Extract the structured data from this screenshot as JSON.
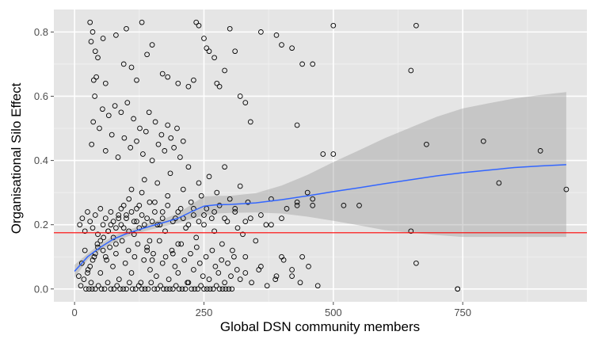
{
  "chart_data": {
    "type": "scatter",
    "xlabel": "Global DSN community members",
    "ylabel": "Organisational Silo Effect",
    "xlim": [
      -40,
      990
    ],
    "ylim": [
      -0.04,
      0.87
    ],
    "x_ticks": [
      0,
      250,
      500,
      750
    ],
    "x_tick_labels": [
      "0",
      "250",
      "500",
      "750"
    ],
    "y_ticks": [
      0.0,
      0.2,
      0.4,
      0.6,
      0.8
    ],
    "y_tick_labels": [
      "0.0",
      "0.2",
      "0.4",
      "0.6",
      "0.8"
    ],
    "grid": true,
    "reference_line": {
      "y": 0.175,
      "color": "#ff0000"
    },
    "smooth": {
      "color": "#3366ff",
      "band_color": "#999999",
      "x": [
        0,
        25,
        50,
        75,
        100,
        125,
        150,
        175,
        200,
        225,
        250,
        275,
        300,
        350,
        400,
        450,
        500,
        550,
        600,
        650,
        700,
        750,
        800,
        850,
        900,
        950
      ],
      "y": [
        0.055,
        0.1,
        0.13,
        0.155,
        0.172,
        0.185,
        0.197,
        0.208,
        0.22,
        0.24,
        0.258,
        0.262,
        0.263,
        0.268,
        0.278,
        0.29,
        0.303,
        0.315,
        0.328,
        0.34,
        0.352,
        0.362,
        0.37,
        0.378,
        0.383,
        0.387
      ],
      "lower": [
        0.035,
        0.09,
        0.12,
        0.145,
        0.162,
        0.175,
        0.186,
        0.196,
        0.205,
        0.218,
        0.228,
        0.235,
        0.237,
        0.238,
        0.235,
        0.225,
        0.212,
        0.198,
        0.183,
        0.175,
        0.168,
        0.162,
        0.162,
        0.162,
        0.162,
        0.162
      ],
      "upper": [
        0.075,
        0.11,
        0.14,
        0.165,
        0.182,
        0.195,
        0.208,
        0.22,
        0.235,
        0.262,
        0.288,
        0.29,
        0.29,
        0.298,
        0.322,
        0.355,
        0.395,
        0.432,
        0.47,
        0.503,
        0.536,
        0.562,
        0.578,
        0.593,
        0.604,
        0.613
      ]
    },
    "points": {
      "x": [
        12,
        18,
        25,
        30,
        35,
        40,
        45,
        50,
        55,
        60,
        65,
        70,
        75,
        80,
        85,
        90,
        95,
        100,
        105,
        110,
        115,
        120,
        125,
        130,
        135,
        140,
        145,
        150,
        155,
        160,
        165,
        170,
        175,
        180,
        185,
        190,
        195,
        200,
        205,
        210,
        215,
        220,
        225,
        230,
        235,
        240,
        245,
        250,
        255,
        260,
        265,
        270,
        275,
        280,
        285,
        290,
        295,
        300,
        305,
        310,
        315,
        320,
        325,
        330,
        335,
        340,
        350,
        360,
        370,
        380,
        390,
        400,
        410,
        420,
        430,
        440,
        450,
        460,
        480,
        500,
        520,
        550,
        650,
        660,
        680,
        740,
        790,
        820,
        900,
        950,
        8,
        14,
        20,
        26,
        32,
        38,
        44,
        50,
        56,
        62,
        68,
        74,
        80,
        86,
        92,
        98,
        104,
        110,
        116,
        122,
        128,
        134,
        140,
        146,
        152,
        158,
        164,
        170,
        176,
        182,
        188,
        194,
        200,
        206,
        212,
        218,
        224,
        230,
        236,
        242,
        248,
        254,
        260,
        266,
        272,
        278,
        284,
        290,
        296,
        302,
        308,
        314,
        320,
        330,
        342,
        356,
        372,
        388,
        404,
        420,
        436,
        452,
        470,
        22,
        28,
        34,
        40,
        46,
        52,
        58,
        64,
        70,
        76,
        82,
        88,
        94,
        100,
        106,
        112,
        118,
        124,
        130,
        136,
        142,
        148,
        154,
        160,
        166,
        172,
        178,
        184,
        190,
        196,
        202,
        208,
        214,
        220,
        226,
        232,
        238,
        244,
        250,
        256,
        262,
        268,
        274,
        280,
        286,
        292,
        298,
        304,
        33,
        36,
        39,
        42,
        48,
        54,
        60,
        66,
        72,
        78,
        84,
        90,
        96,
        102,
        108,
        114,
        120,
        126,
        132,
        138,
        144,
        150,
        156,
        162,
        168,
        174,
        180,
        186,
        192,
        198,
        204,
        210,
        30,
        35,
        32,
        40,
        55,
        37,
        45,
        60,
        80,
        95,
        100,
        110,
        120,
        130,
        140,
        150,
        170,
        180,
        200,
        220,
        230,
        235,
        240,
        250,
        255,
        260,
        270,
        275,
        280,
        290,
        300,
        310,
        320,
        330,
        340,
        360,
        390,
        400,
        420,
        430,
        440,
        460,
        500,
        650,
        660,
        10,
        15,
        20,
        25,
        30,
        35,
        40,
        45,
        50,
        55,
        60,
        65,
        70,
        75,
        80,
        85,
        90,
        95,
        100,
        105,
        110,
        115,
        120,
        125,
        130,
        135,
        140,
        145,
        150,
        155,
        160,
        170,
        180,
        190,
        200,
        210,
        220,
        230,
        240,
        250,
        270,
        290,
        310,
        330,
        360,
        380,
        400,
        430,
        460,
        740
      ],
      "y": [
        0.01,
        0.03,
        0.05,
        0.07,
        0.09,
        0.11,
        0.13,
        0.15,
        0.12,
        0.1,
        0.18,
        0.2,
        0.16,
        0.14,
        0.22,
        0.25,
        0.19,
        0.23,
        0.28,
        0.31,
        0.17,
        0.21,
        0.26,
        0.3,
        0.34,
        0.12,
        0.15,
        0.09,
        0.27,
        0.33,
        0.2,
        0.24,
        0.18,
        0.29,
        0.36,
        0.11,
        0.22,
        0.14,
        0.25,
        0.31,
        0.19,
        0.38,
        0.27,
        0.23,
        0.16,
        0.33,
        0.29,
        0.2,
        0.25,
        0.35,
        0.22,
        0.18,
        0.3,
        0.26,
        0.14,
        0.38,
        0.21,
        0.28,
        0.12,
        0.24,
        0.19,
        0.32,
        0.17,
        0.1,
        0.27,
        0.22,
        0.15,
        0.07,
        0.2,
        0.28,
        0.04,
        0.1,
        0.25,
        0.06,
        0.27,
        0.1,
        0.3,
        0.26,
        0.42,
        0.42,
        0.26,
        0.26,
        0.18,
        0.08,
        0.45,
        0.0,
        0.46,
        0.33,
        0.43,
        0.31,
        0.04,
        0.08,
        0.12,
        0.06,
        0.02,
        0.1,
        0.14,
        0.05,
        0.16,
        0.09,
        0.13,
        0.07,
        0.11,
        0.03,
        0.15,
        0.08,
        0.12,
        0.05,
        0.1,
        0.14,
        0.02,
        0.09,
        0.13,
        0.06,
        0.11,
        0.04,
        0.15,
        0.08,
        0.1,
        0.03,
        0.12,
        0.07,
        0.05,
        0.14,
        0.09,
        0.02,
        0.11,
        0.06,
        0.13,
        0.08,
        0.04,
        0.1,
        0.03,
        0.12,
        0.07,
        0.05,
        0.09,
        0.02,
        0.08,
        0.04,
        0.1,
        0.06,
        0.03,
        0.05,
        0.02,
        0.06,
        0.01,
        0.03,
        0.09,
        0.04,
        0.02,
        0.07,
        0.01,
        0.0,
        0.0,
        0.0,
        0.0,
        0.01,
        0.0,
        0.0,
        0.02,
        0.0,
        0.0,
        0.01,
        0.0,
        0.0,
        0.0,
        0.02,
        0.0,
        0.0,
        0.01,
        0.0,
        0.0,
        0.0,
        0.02,
        0.0,
        0.0,
        0.01,
        0.0,
        0.0,
        0.0,
        0.0,
        0.01,
        0.0,
        0.0,
        0.0,
        0.02,
        0.0,
        0.0,
        0.0,
        0.01,
        0.0,
        0.0,
        0.0,
        0.0,
        0.01,
        0.0,
        0.0,
        0.0,
        0.0,
        0.0,
        0.45,
        0.52,
        0.6,
        0.66,
        0.5,
        0.56,
        0.43,
        0.54,
        0.48,
        0.57,
        0.41,
        0.55,
        0.47,
        0.58,
        0.44,
        0.53,
        0.46,
        0.5,
        0.42,
        0.49,
        0.55,
        0.4,
        0.52,
        0.45,
        0.48,
        0.43,
        0.51,
        0.47,
        0.44,
        0.5,
        0.41,
        0.46,
        0.83,
        0.8,
        0.77,
        0.74,
        0.78,
        0.65,
        0.72,
        0.64,
        0.79,
        0.7,
        0.81,
        0.69,
        0.65,
        0.83,
        0.73,
        0.76,
        0.67,
        0.66,
        0.64,
        0.63,
        0.65,
        0.83,
        0.82,
        0.78,
        0.75,
        0.74,
        0.72,
        0.64,
        0.63,
        0.68,
        0.81,
        0.74,
        0.6,
        0.58,
        0.52,
        0.8,
        0.79,
        0.76,
        0.75,
        0.51,
        0.7,
        0.7,
        0.82,
        0.68,
        0.82,
        0.2,
        0.22,
        0.18,
        0.24,
        0.21,
        0.19,
        0.23,
        0.17,
        0.25,
        0.2,
        0.22,
        0.18,
        0.24,
        0.21,
        0.19,
        0.23,
        0.2,
        0.26,
        0.22,
        0.18,
        0.24,
        0.21,
        0.25,
        0.19,
        0.23,
        0.2,
        0.22,
        0.27,
        0.21,
        0.24,
        0.2,
        0.22,
        0.26,
        0.21,
        0.24,
        0.22,
        0.2,
        0.25,
        0.21,
        0.23,
        0.24,
        0.22,
        0.25,
        0.21,
        0.23,
        0.2,
        0.22,
        0.26,
        0.28,
        0.0
      ]
    }
  }
}
